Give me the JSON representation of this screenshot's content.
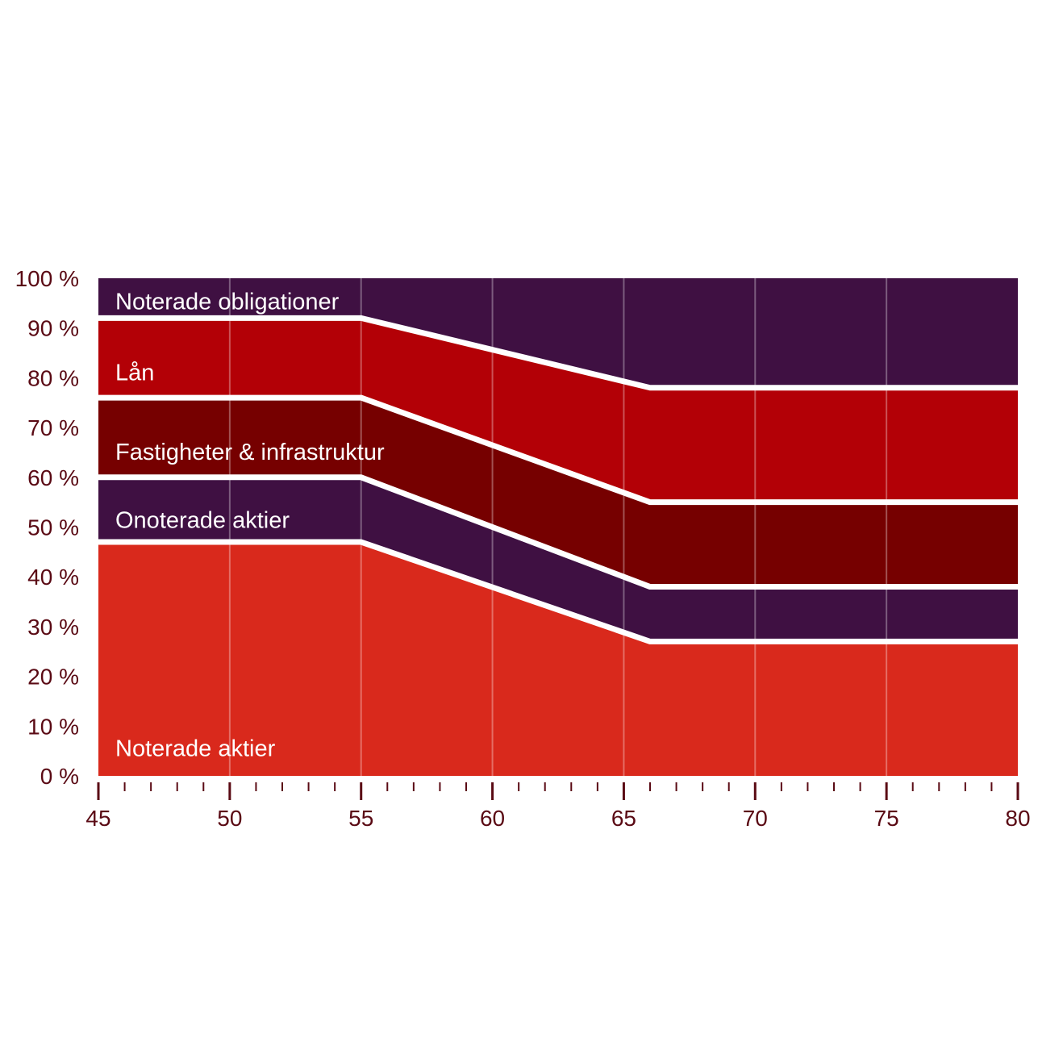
{
  "chart_data": {
    "type": "area",
    "stacked": true,
    "title": "",
    "xlabel": "",
    "ylabel": "",
    "x": [
      45,
      55,
      66,
      80
    ],
    "xlim": [
      45,
      80
    ],
    "ylim": [
      0,
      100
    ],
    "x_ticks": [
      45,
      50,
      55,
      60,
      65,
      70,
      75,
      80
    ],
    "x_tick_labels": [
      "45",
      "50",
      "55",
      "60",
      "65",
      "70",
      "75",
      "80"
    ],
    "y_ticks": [
      0,
      10,
      20,
      30,
      40,
      50,
      60,
      70,
      80,
      90,
      100
    ],
    "y_tick_labels": [
      "0 %",
      "10 %",
      "20 %",
      "30 %",
      "40 %",
      "50 %",
      "60 %",
      "70 %",
      "80 %",
      "90 %",
      "100 %"
    ],
    "grid": "vertical",
    "series": [
      {
        "name": "Noterade aktier",
        "label": "Noterade aktier",
        "values": [
          47,
          47,
          27,
          27
        ],
        "color": "#d9291c"
      },
      {
        "name": "Onoterade aktier",
        "label": "Onoterade aktier",
        "values": [
          13,
          13,
          11,
          11
        ],
        "color": "#3f1042"
      },
      {
        "name": "Fastigheter & infrastruktur",
        "label": "Fastigheter & infrastruktur",
        "values": [
          16,
          16,
          17,
          17
        ],
        "color": "#760000"
      },
      {
        "name": "Lån",
        "label": "Lån",
        "values": [
          16,
          16,
          23,
          23
        ],
        "color": "#b30006"
      },
      {
        "name": "Noterade obligationer",
        "label": "Noterade obligationer",
        "values": [
          8,
          8,
          22,
          22
        ],
        "color": "#3f1042"
      }
    ],
    "colors": {
      "axis": "#5a0a14",
      "divider": "#ffffff",
      "grid": "#ffffff"
    }
  }
}
